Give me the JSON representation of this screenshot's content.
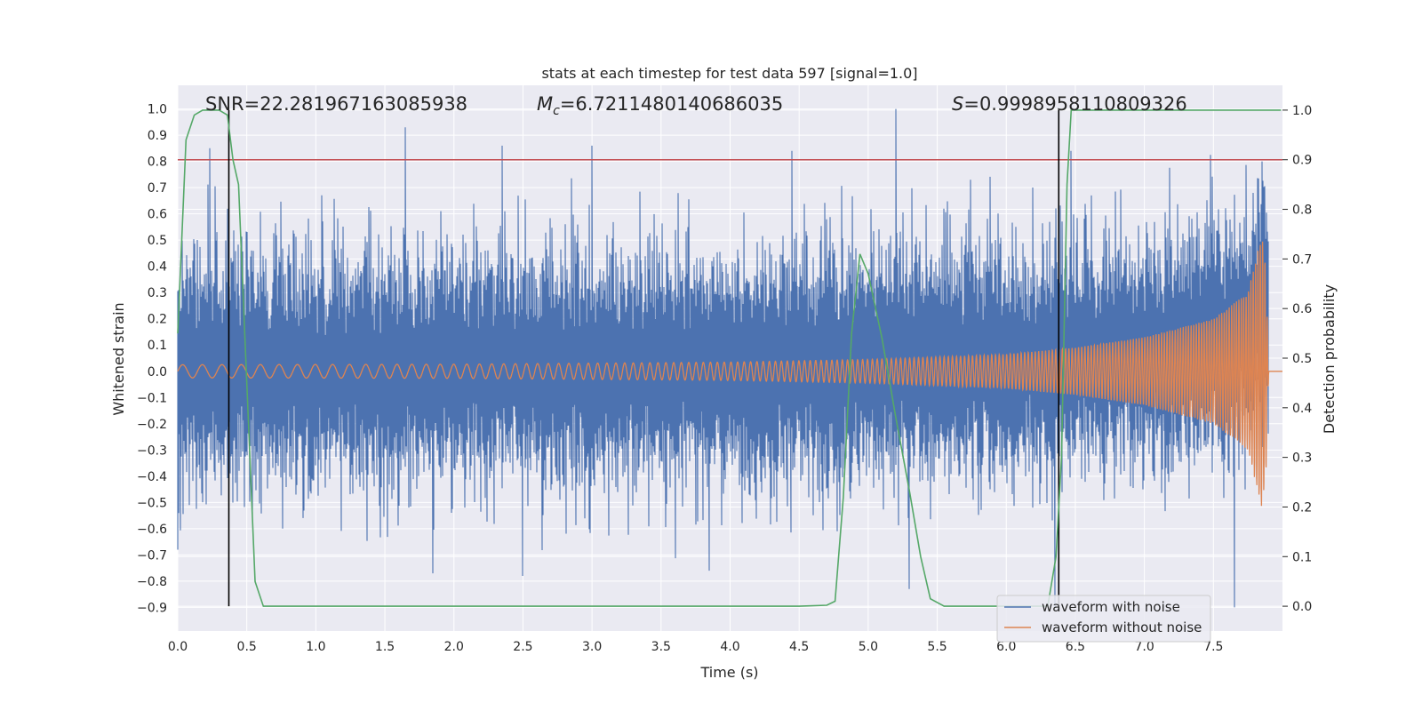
{
  "chart_data": {
    "type": "line",
    "title": "stats at each timestep for test data 597 [signal=1.0]",
    "xlabel": "Time (s)",
    "ylabel": "Whitened strain",
    "y2label": "Detection probability",
    "xlim": [
      0.0,
      8.0
    ],
    "ylim": [
      -0.99,
      1.09
    ],
    "y2lim": [
      -0.05,
      1.05
    ],
    "x_ticks": [
      "0.0",
      "0.5",
      "1.0",
      "1.5",
      "2.0",
      "2.5",
      "3.0",
      "3.5",
      "4.0",
      "4.5",
      "5.0",
      "5.5",
      "6.0",
      "6.5",
      "7.0",
      "7.5"
    ],
    "y_ticks": [
      "1.0",
      "0.9",
      "0.8",
      "0.7",
      "0.6",
      "0.5",
      "0.4",
      "0.3",
      "0.2",
      "0.1",
      "0.0",
      "−0.1",
      "−0.2",
      "−0.3",
      "−0.4",
      "−0.5",
      "−0.6",
      "−0.7",
      "−0.8",
      "−0.9"
    ],
    "y2_ticks": [
      "1.0",
      "0.9",
      "0.8",
      "0.7",
      "0.6",
      "0.5",
      "0.4",
      "0.3",
      "0.2",
      "0.1",
      "0.0"
    ],
    "annotations": {
      "snr": "SNR=22.281967163085938",
      "mc_symbol": "M",
      "mc_sub": "c",
      "mc_value": "=6.7211480140686035",
      "s_symbol": "S",
      "s_value": "=0.9998958110809326"
    },
    "threshold": {
      "y2": 0.9,
      "color": "#c44e52"
    },
    "vertical_lines": [
      0.37,
      6.38
    ],
    "series": [
      {
        "name": "waveform with noise",
        "color": "#4c72b0",
        "description_values": {
          "typical_envelope": [
            -0.5,
            0.55
          ],
          "peaks": [
            [
              0.23,
              0.85
            ],
            [
              1.65,
              0.93
            ],
            [
              2.35,
              0.86
            ],
            [
              3.0,
              0.86
            ],
            [
              4.45,
              0.84
            ],
            [
              5.2,
              1.0
            ],
            [
              6.47,
              0.84
            ],
            [
              7.85,
              0.8
            ]
          ],
          "troughs": [
            [
              0.0,
              -0.68
            ],
            [
              1.85,
              -0.77
            ],
            [
              2.5,
              -0.78
            ],
            [
              3.85,
              -0.76
            ],
            [
              5.3,
              -0.83
            ],
            [
              6.35,
              -0.9
            ],
            [
              7.65,
              -0.9
            ]
          ],
          "end_x": 7.9
        }
      },
      {
        "name": "waveform without noise",
        "color": "#dd8452",
        "chirp": {
          "amplitude": [
            [
              0.0,
              0.025
            ],
            [
              2.0,
              0.027
            ],
            [
              4.0,
              0.035
            ],
            [
              5.0,
              0.045
            ],
            [
              6.0,
              0.065
            ],
            [
              6.5,
              0.09
            ],
            [
              7.0,
              0.13
            ],
            [
              7.5,
              0.2
            ],
            [
              7.75,
              0.3
            ],
            [
              7.85,
              0.52
            ],
            [
              7.88,
              0.4
            ],
            [
              7.9,
              0.0
            ],
            [
              8.0,
              0.0
            ]
          ],
          "frequency_start": 7.0,
          "frequency_end": 60.0,
          "end_x": 7.9
        }
      },
      {
        "name": "detection probability",
        "color": "#55a868",
        "axis": "y2",
        "x": [
          0.0,
          0.06,
          0.12,
          0.18,
          0.24,
          0.3,
          0.36,
          0.4,
          0.44,
          0.5,
          0.56,
          0.62,
          0.7,
          1.0,
          2.0,
          3.0,
          4.0,
          4.5,
          4.7,
          4.76,
          4.82,
          4.88,
          4.94,
          5.0,
          5.1,
          5.2,
          5.3,
          5.38,
          5.45,
          5.55,
          6.0,
          6.3,
          6.36,
          6.4,
          6.44,
          6.47,
          7.0,
          7.5,
          7.99
        ],
        "y": [
          0.55,
          0.94,
          0.99,
          1.0,
          1.0,
          1.0,
          0.99,
          0.9,
          0.85,
          0.45,
          0.05,
          0.0,
          0.0,
          0.0,
          0.0,
          0.0,
          0.0,
          0.0,
          0.002,
          0.01,
          0.22,
          0.55,
          0.71,
          0.67,
          0.54,
          0.38,
          0.23,
          0.1,
          0.015,
          0.0,
          0.0,
          0.0,
          0.1,
          0.3,
          0.85,
          1.0,
          1.0,
          1.0,
          1.0
        ]
      }
    ],
    "legend": {
      "placement": "lower-right",
      "entries": [
        "waveform with noise",
        "waveform without noise"
      ]
    },
    "grid": true,
    "colors": {
      "axes_bg": "#eaeaf2",
      "grid": "#ffffff",
      "vertical_lines": "#000000"
    }
  }
}
